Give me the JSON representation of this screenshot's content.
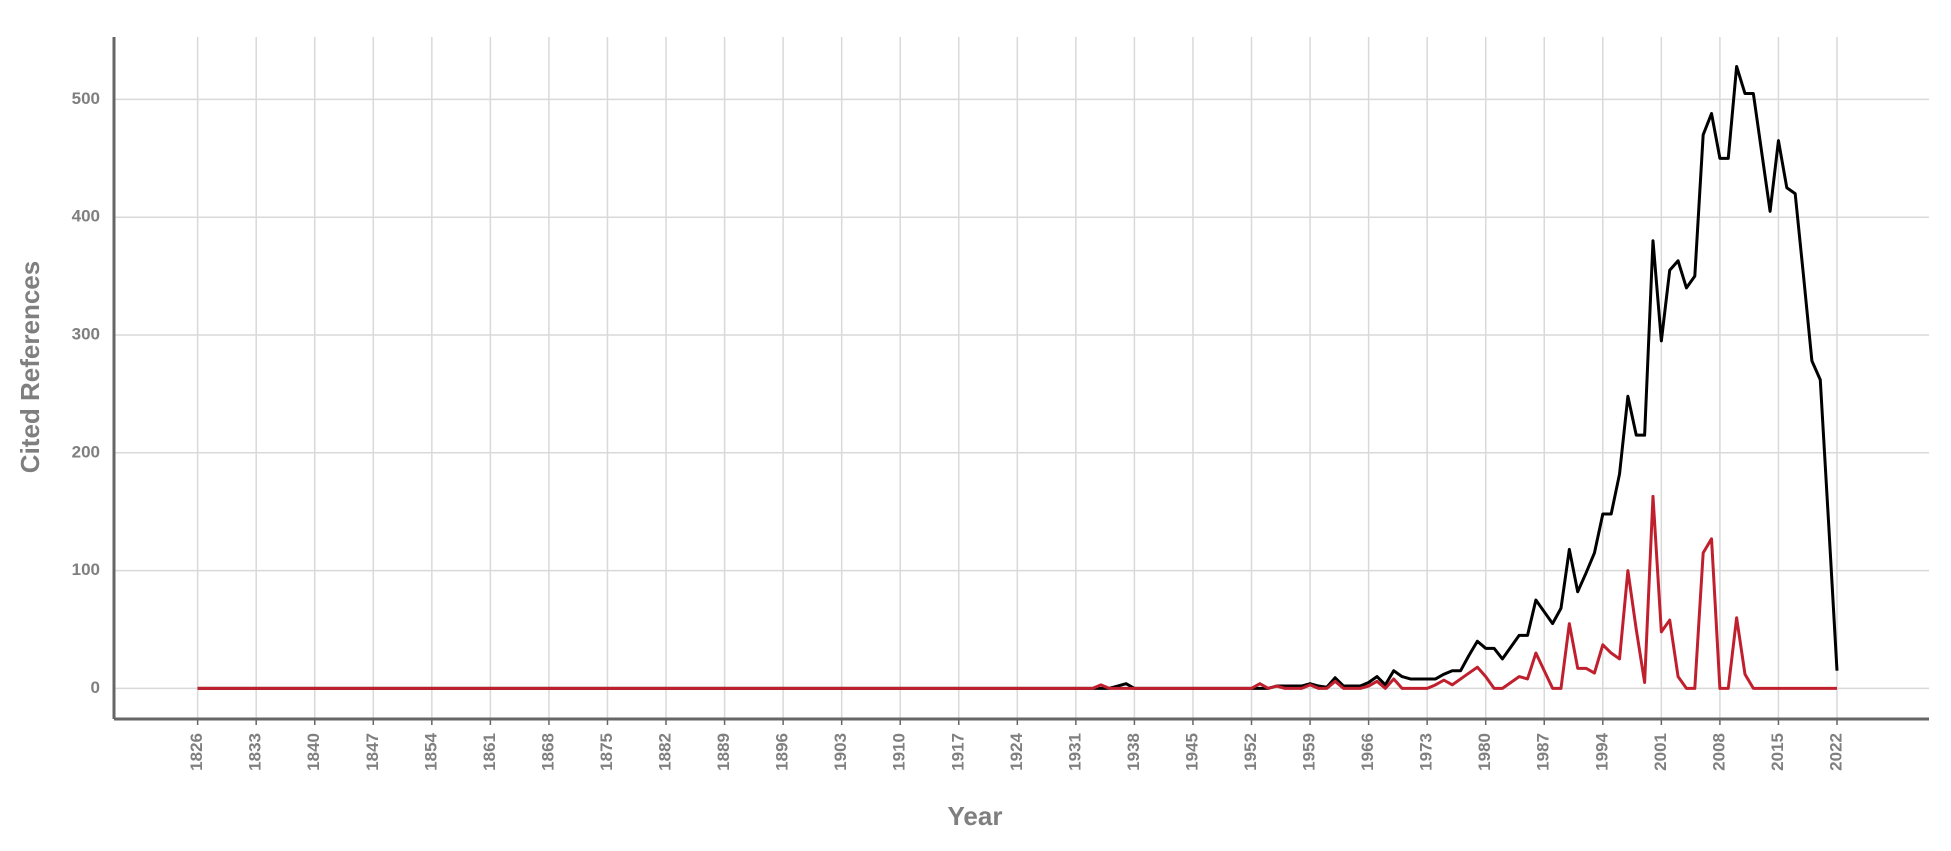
{
  "chart_data": {
    "type": "line",
    "xlabel": "Year",
    "ylabel": "Cited References",
    "x": [
      1826,
      1932,
      1933,
      1934,
      1935,
      1936,
      1937,
      1938,
      1939,
      1940,
      1941,
      1942,
      1943,
      1944,
      1945,
      1946,
      1947,
      1948,
      1949,
      1950,
      1951,
      1952,
      1953,
      1954,
      1955,
      1956,
      1957,
      1958,
      1959,
      1960,
      1961,
      1962,
      1963,
      1964,
      1965,
      1966,
      1967,
      1968,
      1969,
      1970,
      1971,
      1972,
      1973,
      1974,
      1975,
      1976,
      1977,
      1978,
      1979,
      1980,
      1981,
      1982,
      1983,
      1984,
      1985,
      1986,
      1987,
      1988,
      1989,
      1990,
      1991,
      1992,
      1993,
      1994,
      1995,
      1996,
      1997,
      1998,
      1999,
      2000,
      2001,
      2002,
      2003,
      2004,
      2005,
      2006,
      2007,
      2008,
      2009,
      2010,
      2011,
      2012,
      2013,
      2014,
      2015,
      2016,
      2017,
      2018,
      2019,
      2020,
      2021,
      2022
    ],
    "series": [
      {
        "color": "#000000",
        "values": [
          0,
          0,
          0,
          0,
          0,
          2,
          4,
          0,
          0,
          0,
          0,
          0,
          0,
          0,
          0,
          0,
          0,
          0,
          0,
          0,
          0,
          0,
          0,
          0,
          2,
          2,
          2,
          2,
          4,
          2,
          1,
          9,
          2,
          2,
          2,
          5,
          10,
          3,
          15,
          10,
          8,
          8,
          8,
          8,
          12,
          15,
          15,
          28,
          40,
          34,
          34,
          25,
          35,
          45,
          45,
          75,
          65,
          55,
          68,
          118,
          82,
          98,
          115,
          148,
          148,
          182,
          248,
          215,
          215,
          380,
          295,
          355,
          363,
          340,
          350,
          470,
          488,
          450,
          450,
          528,
          505,
          505,
          455,
          405,
          465,
          425,
          420,
          350,
          278,
          262,
          140,
          15
        ]
      },
      {
        "color": "#c0202e",
        "values": [
          0,
          0,
          0,
          3,
          0,
          0,
          0,
          0,
          0,
          0,
          0,
          0,
          0,
          0,
          0,
          0,
          0,
          0,
          0,
          0,
          0,
          0,
          4,
          0,
          2,
          0,
          0,
          0,
          3,
          0,
          0,
          6,
          0,
          0,
          0,
          2,
          6,
          0,
          8,
          0,
          0,
          0,
          0,
          3,
          7,
          3,
          8,
          13,
          18,
          10,
          0,
          0,
          5,
          10,
          8,
          30,
          15,
          0,
          0,
          55,
          17,
          17,
          13,
          37,
          30,
          25,
          100,
          50,
          5,
          163,
          48,
          58,
          10,
          0,
          0,
          115,
          127,
          0,
          0,
          60,
          12,
          0,
          0,
          0,
          0,
          0,
          0,
          0,
          0,
          0,
          0,
          0
        ]
      }
    ],
    "xlim": [
      1816,
      2033
    ],
    "ylim": [
      -26,
      553
    ],
    "xticks": [
      1826,
      1833,
      1840,
      1847,
      1854,
      1861,
      1868,
      1875,
      1882,
      1889,
      1896,
      1903,
      1910,
      1917,
      1924,
      1931,
      1938,
      1945,
      1952,
      1959,
      1966,
      1973,
      1980,
      1987,
      1994,
      2001,
      2008,
      2015,
      2022
    ],
    "yticks": [
      0,
      100,
      200,
      300,
      400,
      500
    ],
    "grid": true
  }
}
